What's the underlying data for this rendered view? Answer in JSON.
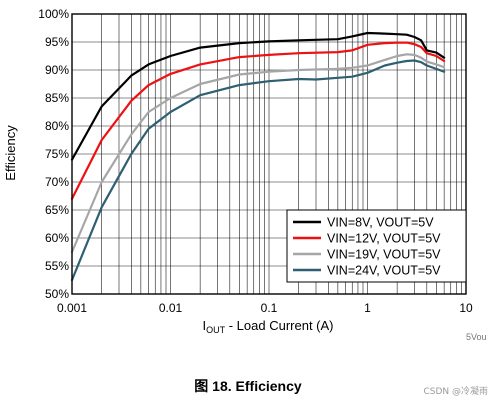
{
  "chart_data": {
    "type": "line",
    "xscale": "log",
    "xlim": [
      0.001,
      10
    ],
    "ylim": [
      50,
      100
    ],
    "x_ticks": [
      "0.001",
      "0.01",
      "0.1",
      "1",
      "10"
    ],
    "y_ticks": [
      "50%",
      "55%",
      "60%",
      "65%",
      "70%",
      "75%",
      "80%",
      "85%",
      "90%",
      "95%",
      "100%"
    ],
    "y_tick_values": [
      50,
      55,
      60,
      65,
      70,
      75,
      80,
      85,
      90,
      95,
      100
    ],
    "xlabel_main": "I",
    "xlabel_sub": "OUT",
    "xlabel_rest": " - Load Current (A)",
    "ylabel": "Efficiency",
    "grid": true,
    "legend_position": "bottom-right",
    "annotation": "5Vou",
    "series": [
      {
        "name": "VIN=8V, VOUT=5V",
        "color": "#000000",
        "x": [
          0.001,
          0.002,
          0.004,
          0.006,
          0.01,
          0.02,
          0.05,
          0.1,
          0.2,
          0.5,
          0.7,
          1,
          1.5,
          2,
          2.5,
          3,
          3.5,
          4,
          5,
          6
        ],
        "y": [
          74,
          83.5,
          89,
          91,
          92.5,
          94,
          94.8,
          95.1,
          95.3,
          95.5,
          96,
          96.6,
          96.5,
          96.4,
          96.3,
          95.9,
          95.3,
          93.5,
          93.1,
          92.2
        ]
      },
      {
        "name": "VIN=12V, VOUT=5V",
        "color": "#ee1111",
        "x": [
          0.001,
          0.002,
          0.004,
          0.006,
          0.01,
          0.02,
          0.05,
          0.1,
          0.2,
          0.5,
          0.7,
          1,
          1.5,
          2,
          2.5,
          3,
          3.5,
          4,
          5,
          6
        ],
        "y": [
          67,
          77.5,
          84.5,
          87.3,
          89.3,
          91,
          92.3,
          92.7,
          93,
          93.2,
          93.5,
          94.5,
          94.8,
          94.9,
          94.9,
          94.6,
          94.1,
          93,
          92.5,
          91.6
        ]
      },
      {
        "name": "VIN=19V, VOUT=5V",
        "color": "#a6a6a6",
        "x": [
          0.001,
          0.002,
          0.004,
          0.006,
          0.01,
          0.02,
          0.05,
          0.1,
          0.2,
          0.5,
          0.7,
          1,
          1.5,
          2,
          2.5,
          3,
          3.5,
          4,
          5,
          6
        ],
        "y": [
          57.5,
          70,
          78.5,
          82.5,
          85,
          87.5,
          89.2,
          89.7,
          90,
          90.2,
          90.4,
          90.8,
          91.8,
          92.5,
          92.8,
          92.7,
          92.2,
          91.5,
          91,
          90.5
        ]
      },
      {
        "name": "VIN=24V, VOUT=5V",
        "color": "#2f5f73",
        "x": [
          0.001,
          0.002,
          0.004,
          0.006,
          0.01,
          0.02,
          0.05,
          0.1,
          0.2,
          0.3,
          0.5,
          0.7,
          1,
          1.5,
          2,
          2.5,
          3,
          3.5,
          4,
          5,
          6
        ],
        "y": [
          52.5,
          65.5,
          75,
          79.5,
          82.5,
          85.5,
          87.3,
          88,
          88.4,
          88.3,
          88.6,
          88.8,
          89.5,
          90.8,
          91.3,
          91.6,
          91.7,
          91.4,
          90.8,
          90.2,
          89.7
        ]
      }
    ]
  },
  "caption": {
    "figure_label": "图 18. Efficiency"
  },
  "watermark": "CSDN @冷凝雨"
}
